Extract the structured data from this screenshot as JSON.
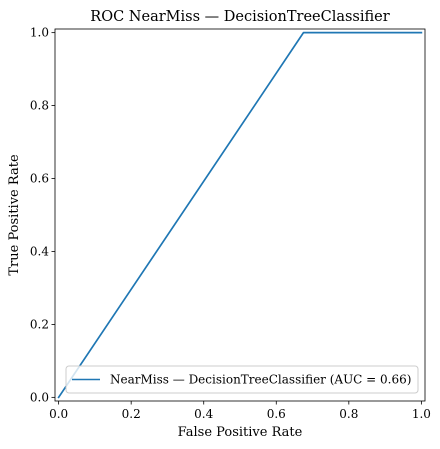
{
  "chart_data": {
    "type": "line",
    "title": "ROC NearMiss — DecisionTreeClassifier",
    "xlabel": "False Positive Rate",
    "ylabel": "True Positive Rate",
    "xlim": [
      -0.01,
      1.01
    ],
    "ylim": [
      -0.01,
      1.01
    ],
    "xticks": [
      0.0,
      0.2,
      0.4,
      0.6,
      0.8,
      1.0
    ],
    "xtick_labels": [
      "0.0",
      "0.2",
      "0.4",
      "0.6",
      "0.8",
      "1.0"
    ],
    "yticks": [
      0.0,
      0.2,
      0.4,
      0.6,
      0.8,
      1.0
    ],
    "ytick_labels": [
      "0.0",
      "0.2",
      "0.4",
      "0.6",
      "0.8",
      "1.0"
    ],
    "grid": false,
    "legend_position": "lower-right",
    "series": [
      {
        "name": "NearMiss — DecisionTreeClassifier (AUC = 0.66)",
        "color": "#1f77b4",
        "x": [
          0.0,
          0.675,
          1.0
        ],
        "y": [
          0.0,
          1.0,
          1.0
        ]
      }
    ]
  }
}
